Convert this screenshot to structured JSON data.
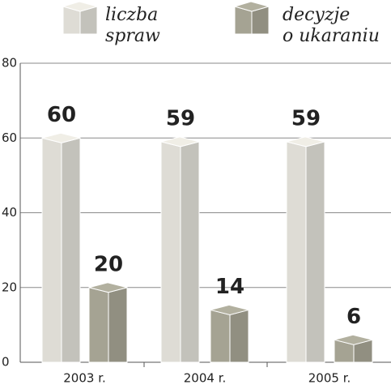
{
  "chart_data": {
    "type": "bar3d",
    "categories": [
      "2003 r.",
      "2004 r.",
      "2005 r."
    ],
    "series": [
      {
        "name": "liczba\nspraw",
        "color": "#dedcd5",
        "values": [
          60,
          59,
          59
        ]
      },
      {
        "name": "decyzje\no ukaraniu",
        "color": "#a5a393",
        "values": [
          20,
          14,
          6
        ]
      }
    ],
    "ylim": [
      0,
      80
    ],
    "yticks": [
      0,
      20,
      40,
      60,
      80
    ],
    "grid": true
  }
}
